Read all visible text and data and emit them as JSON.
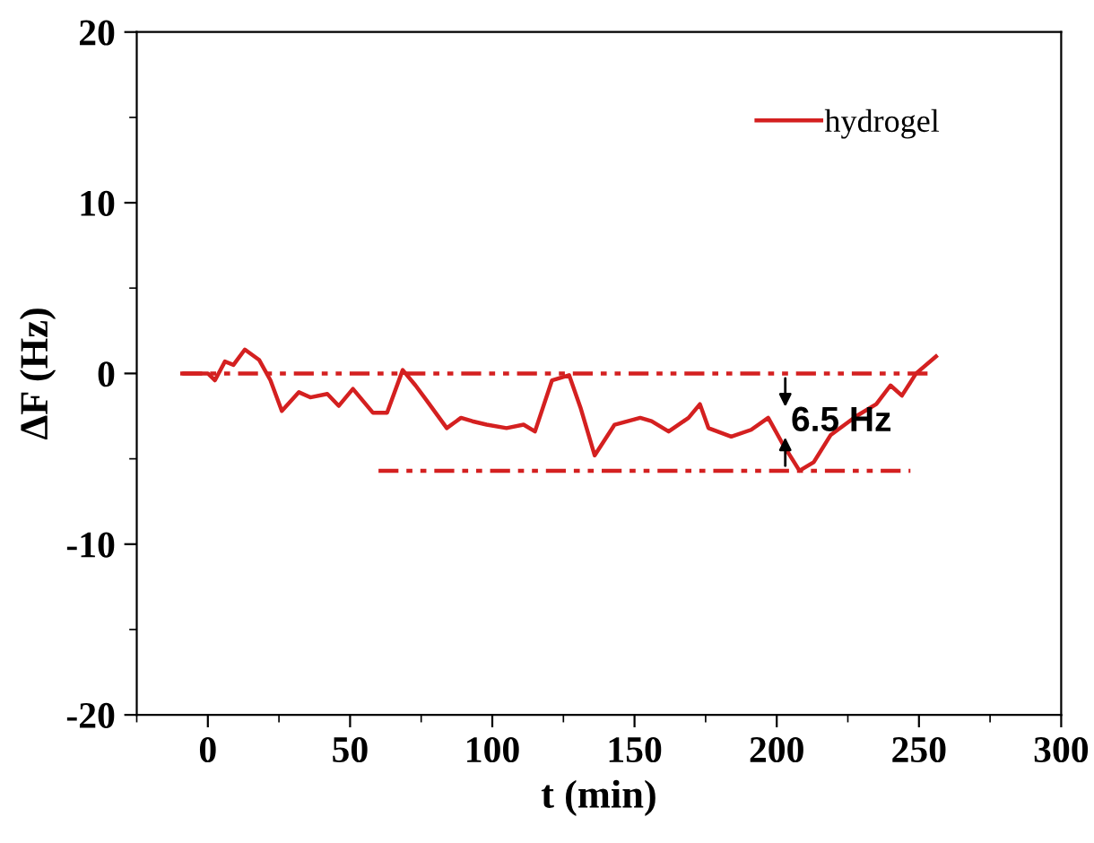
{
  "chart_data": {
    "type": "line",
    "xlabel": "t (min)",
    "ylabel": "ΔF (Hz)",
    "xlim": [
      -25,
      300
    ],
    "xticks": [
      0,
      50,
      100,
      150,
      200,
      250,
      300
    ],
    "ylim": [
      -20,
      20
    ],
    "yticks": [
      -20,
      -10,
      0,
      10,
      20
    ],
    "grid": false,
    "legend": "top right",
    "marker": "none",
    "annotations": [
      "6.5 Hz"
    ],
    "series": [
      {
        "name": "hydrogel",
        "color": "#d42020",
        "line_style": "solid",
        "x": [
          -9,
          0,
          2.5,
          6,
          9,
          13,
          18,
          22,
          26,
          32,
          36,
          42,
          46,
          51,
          58,
          63,
          68.5,
          73,
          77,
          84,
          89,
          93,
          98,
          105,
          111,
          115,
          121,
          127,
          131,
          136,
          143,
          152,
          156,
          162,
          169,
          173,
          176,
          184,
          191,
          197,
          202,
          208,
          213,
          219,
          228,
          235,
          240,
          244,
          249,
          256
        ],
        "values": [
          0,
          0,
          -0.4,
          0.7,
          0.5,
          1.4,
          0.8,
          -0.4,
          -2.2,
          -1.1,
          -1.4,
          -1.2,
          -1.9,
          -0.9,
          -2.3,
          -2.3,
          0.2,
          -0.7,
          -1.6,
          -3.2,
          -2.6,
          -2.8,
          -3.0,
          -3.2,
          -3.0,
          -3.4,
          -0.4,
          -0.1,
          -2.0,
          -4.8,
          -3.0,
          -2.6,
          -2.8,
          -3.4,
          -2.6,
          -1.8,
          -3.2,
          -3.7,
          -3.3,
          -2.6,
          -4.1,
          -5.7,
          -5.2,
          -3.6,
          -2.5,
          -1.8,
          -0.7,
          -1.3,
          0,
          1.0
        ]
      },
      {
        "color": "#d42020",
        "line_style": "dashed",
        "x": [
          -9,
          255
        ],
        "values": [
          0,
          0
        ]
      },
      {
        "color": "#d42020",
        "line_style": "dashed",
        "x": [
          60,
          247
        ],
        "values": [
          -5.7,
          -5.7
        ]
      }
    ]
  }
}
